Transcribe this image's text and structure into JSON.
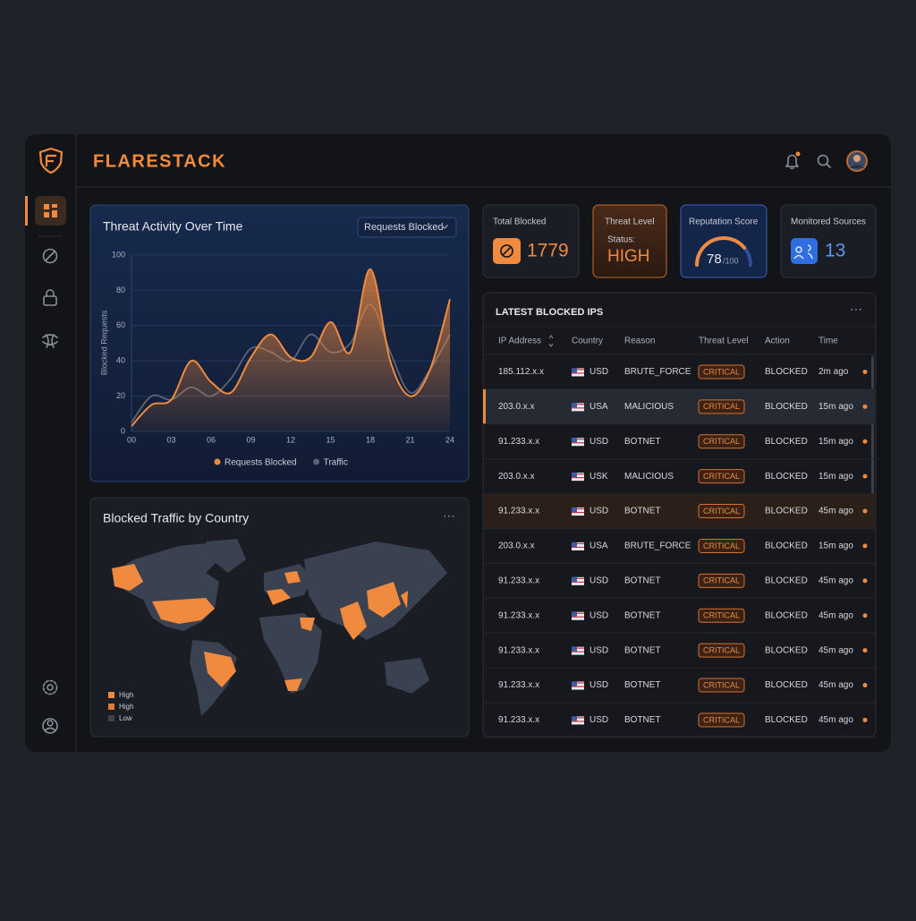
{
  "brand": "FLARESTACK",
  "threat_chart": {
    "title": "Threat Activity Over Time",
    "dropdown": "Requests Blocked",
    "y_label": "Blocked Requests",
    "ylim": [
      0,
      100
    ],
    "yticks": [
      0,
      20,
      40,
      60,
      80,
      100
    ],
    "xlim": [
      0,
      24
    ],
    "xticks": [
      {
        "value": 0,
        "label": "00"
      },
      {
        "value": 3,
        "label": "03"
      },
      {
        "value": 6,
        "label": "06"
      },
      {
        "value": 9,
        "label": "09"
      },
      12,
      15,
      18,
      21,
      24
    ],
    "x": [
      0,
      1.5,
      3,
      4.5,
      6,
      7.5,
      9,
      10.5,
      12,
      13.5,
      15,
      16.5,
      18,
      19.5,
      21,
      22.5,
      24
    ],
    "series": [
      {
        "name": "Requests Blocked",
        "color": "#f08a3e",
        "values": [
          3,
          15,
          18,
          40,
          28,
          22,
          42,
          55,
          42,
          42,
          62,
          45,
          92,
          40,
          20,
          35,
          75
        ]
      },
      {
        "name": "Traffic",
        "color": "#5b6375",
        "values": [
          5,
          20,
          18,
          25,
          20,
          30,
          47,
          45,
          40,
          55,
          45,
          50,
          72,
          45,
          22,
          35,
          55
        ]
      }
    ]
  },
  "map_panel": {
    "title": "Blocked Traffic by Country",
    "legend": [
      "High",
      "High",
      "Low"
    ]
  },
  "stats": {
    "total_blocked": {
      "label": "Total Blocked",
      "value": 1779
    },
    "threat_level": {
      "label": "Threat Level",
      "status_label": "Status:",
      "status": "HIGH"
    },
    "reputation": {
      "label": "Reputation Score",
      "value": 78,
      "scale_max": 100,
      "scale_label": "/100"
    },
    "monitored_sources": {
      "label": "Monitored Sources",
      "value": 13
    }
  },
  "table": {
    "title": "LATEST BLOCKED IPS",
    "columns": [
      "IP Address",
      "Country",
      "Reason",
      "Threat Level",
      "Action",
      "Time"
    ],
    "rows": [
      [
        "185.112.x.x",
        "USD",
        "BRUTE_FORCE",
        "CRITICAL",
        "BLOCKED",
        "2m ago"
      ],
      [
        "203.0.x.x",
        "USA",
        "MALICIOUS",
        "CRITICAL",
        "BLOCKED",
        "15m ago"
      ],
      [
        "91.233.x.x",
        "USD",
        "BOTNET",
        "CRITICAL",
        "BLOCKED",
        "15m ago"
      ],
      [
        "203.0.x.x",
        "USK",
        "MALICIOUS",
        "CRITICAL",
        "BLOCKED",
        "15m ago"
      ],
      [
        "91.233.x.x",
        "USD",
        "BOTNET",
        "CRITICAL",
        "BLOCKED",
        "45m ago"
      ],
      [
        "203.0.x.x",
        "USA",
        "BRUTE_FORCE",
        "CRITICAL",
        "BLOCKED",
        "15m ago"
      ],
      [
        "91.233.x.x",
        "USD",
        "BOTNET",
        "CRITICAL",
        "BLOCKED",
        "45m ago"
      ],
      [
        "91.233.x.x",
        "USD",
        "BOTNET",
        "CRITICAL",
        "BLOCKED",
        "45m ago"
      ],
      [
        "91.233.x.x",
        "USD",
        "BOTNET",
        "CRITICAL",
        "BLOCKED",
        "45m ago"
      ],
      [
        "91.233.x.x",
        "USD",
        "BOTNET",
        "CRITICAL",
        "BLOCKED",
        "45m ago"
      ],
      [
        "91.233.x.x",
        "USD",
        "BOTNET",
        "CRITICAL",
        "BLOCKED",
        "45m ago"
      ]
    ]
  }
}
